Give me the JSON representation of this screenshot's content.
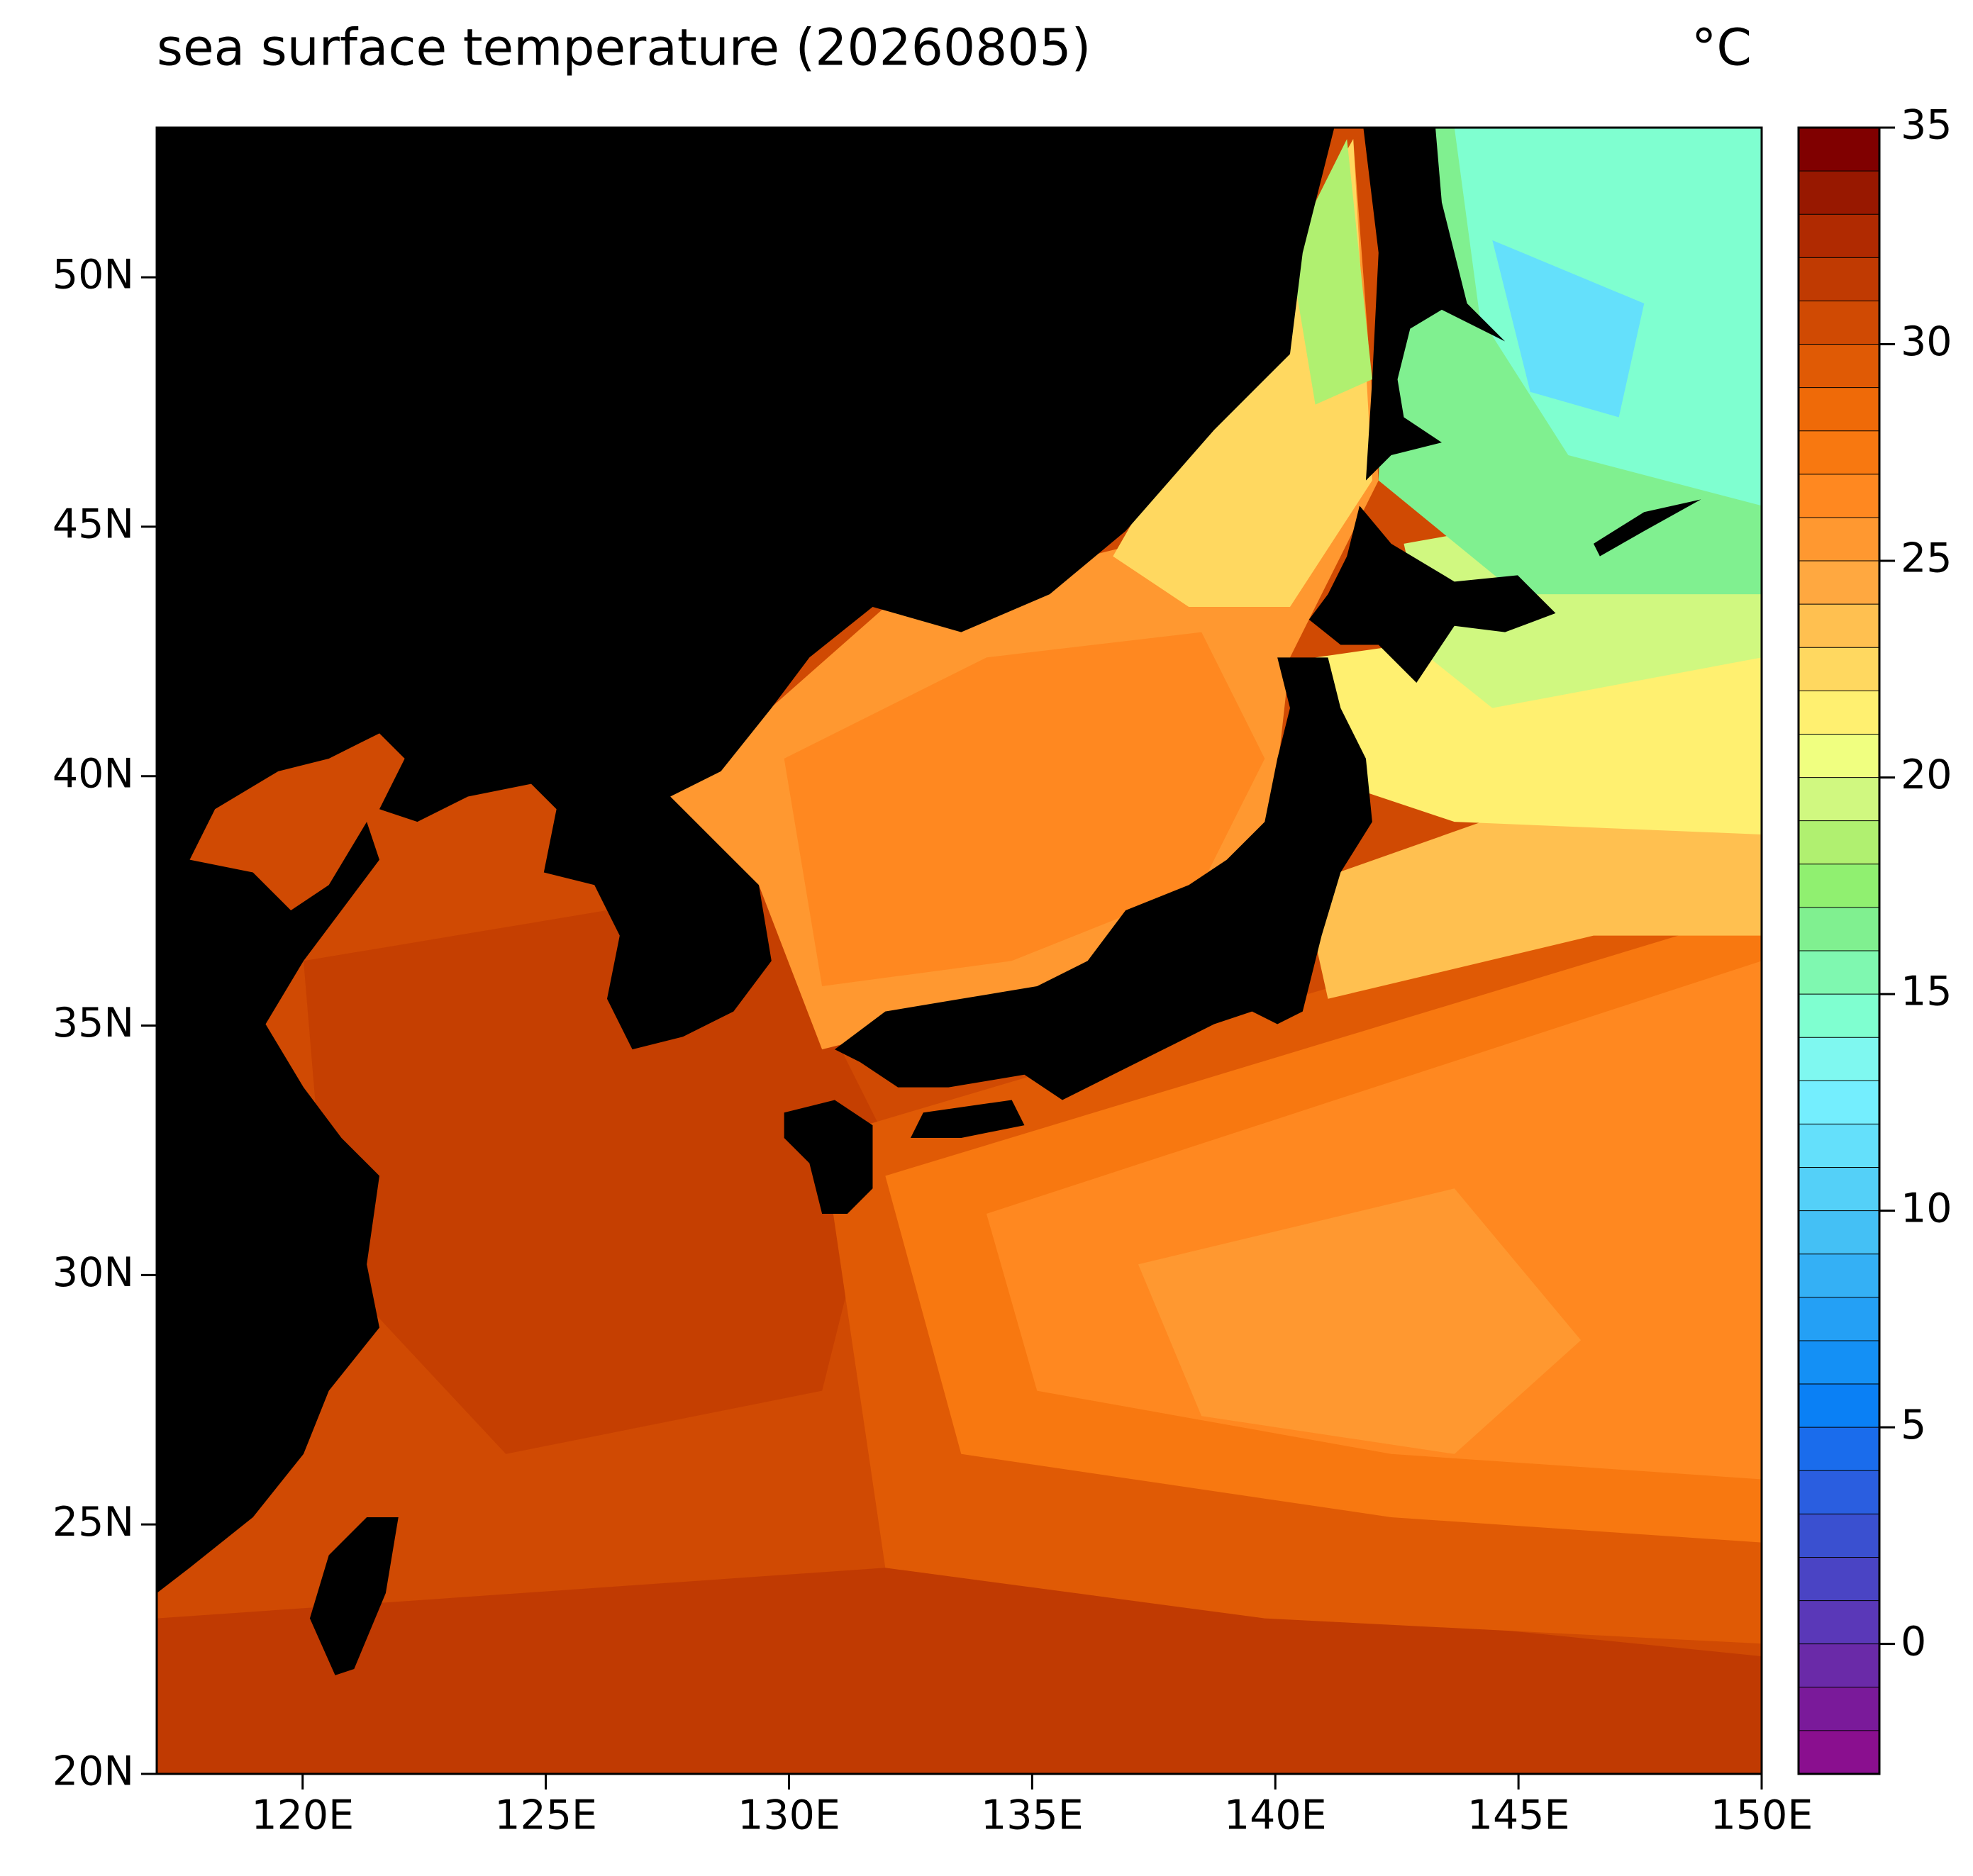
{
  "chart_data": {
    "type": "contour_map",
    "title": "sea surface temperature (20260805)",
    "unit": "°C",
    "xlim": [
      117,
      150
    ],
    "ylim": [
      20,
      53
    ],
    "xticks": [
      {
        "value": 120,
        "label": "120E"
      },
      {
        "value": 125,
        "label": "125E"
      },
      {
        "value": 130,
        "label": "130E"
      },
      {
        "value": 135,
        "label": "135E"
      },
      {
        "value": 140,
        "label": "140E"
      },
      {
        "value": 145,
        "label": "145E"
      },
      {
        "value": 150,
        "label": "150E"
      }
    ],
    "yticks": [
      {
        "value": 20,
        "label": "20N"
      },
      {
        "value": 25,
        "label": "25N"
      },
      {
        "value": 30,
        "label": "30N"
      },
      {
        "value": 35,
        "label": "35N"
      },
      {
        "value": 40,
        "label": "40N"
      },
      {
        "value": 45,
        "label": "45N"
      },
      {
        "value": 50,
        "label": "50N"
      }
    ],
    "land_color": "#000000",
    "colorbar": {
      "lim": [
        -3,
        35
      ],
      "ticks": [
        0,
        5,
        10,
        15,
        20,
        25,
        30,
        35
      ],
      "colors": [
        "#8a0f8f",
        "#7a1a9a",
        "#6a2aa8",
        "#5a38b8",
        "#4a44c4",
        "#3a50d0",
        "#2a5ee0",
        "#1a6cec",
        "#0a80f5",
        "#1490f5",
        "#24a0f5",
        "#34b0f5",
        "#44c0f5",
        "#54d0f8",
        "#64e0fb",
        "#74eefe",
        "#7ff8f0",
        "#7fffd0",
        "#7ff8b0",
        "#80f090",
        "#90f070",
        "#b0f070",
        "#d0f880",
        "#f0ff80",
        "#fff070",
        "#ffd860",
        "#ffc050",
        "#ffa840",
        "#ff9830",
        "#ff8820",
        "#f87810",
        "#ef6a08",
        "#e05a05",
        "#d04a03",
        "#c03a02",
        "#b02a01",
        "#981800",
        "#800000"
      ]
    }
  }
}
